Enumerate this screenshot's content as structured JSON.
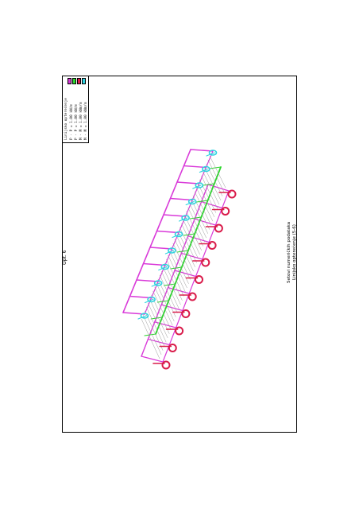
{
  "page": {
    "label": "Opt. 6",
    "caption_line1": "Setovi numeričkih podataka",
    "caption_line2": "Linijsko opterećenje (5-6)"
  },
  "legend": {
    "title": "Linijsko opterećenje",
    "rows": [
      {
        "text": "P · P = 1.00  kN/m",
        "color": "#d93ad9"
      },
      {
        "text": "P · P = 1.00  kN/m",
        "color": "#2bd62b"
      },
      {
        "text": "M · M = 1.00  kNm/m",
        "color": "#d91b4a"
      },
      {
        "text": "M · M = 1.00  kNm/m",
        "color": "#2fd3e0"
      }
    ]
  },
  "colors": {
    "frame": "#d93ad9",
    "load_green": "#2bd62b",
    "moment_red": "#d91b4a",
    "moment_cyan": "#2fd3e0",
    "hatch": "#9a9a9a"
  }
}
